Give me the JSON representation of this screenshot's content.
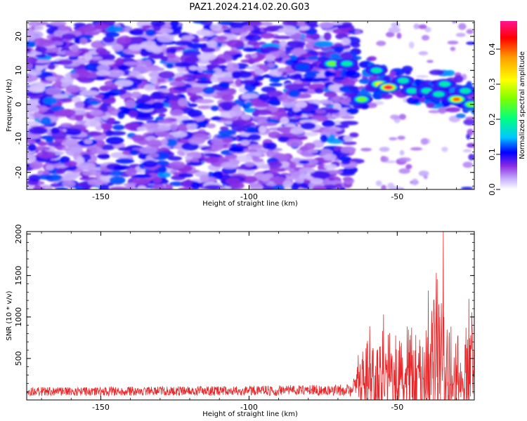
{
  "figure_title": "PAZ1.2024.214.02.20.G03",
  "chart_data": [
    {
      "type": "heatmap",
      "title": "",
      "xlabel": "Height of straight line (km)",
      "ylabel": "Frequency (Hz)",
      "xlim": [
        -175,
        -24
      ],
      "ylim": [
        -25,
        24.5
      ],
      "xticks": [
        "-150",
        "-100",
        "-50"
      ],
      "yticks": [
        "20",
        "10",
        "0",
        "-10",
        "-20"
      ],
      "grid": false,
      "colorbar": {
        "label": "Normalized spectral amplitude",
        "range": [
          0,
          0.48
        ],
        "ticks": [
          "0.0",
          "0.1",
          "0.2",
          "0.3",
          "0.4"
        ],
        "colors": [
          "#ffffff",
          "#c9b3ff",
          "#8a2be2",
          "#0000ff",
          "#00c8ff",
          "#00ff80",
          "#80ff00",
          "#ffff00",
          "#ffa000",
          "#ff0000",
          "#ff1493"
        ]
      },
      "feature": {
        "description_free": true,
        "dense_region_x": [
          -175,
          -64
        ],
        "dense_region_y": [
          -25,
          24.5
        ],
        "ridge": [
          {
            "x": -82,
            "y": 11,
            "v": 0.15
          },
          {
            "x": -72,
            "y": 12,
            "v": 0.25
          },
          {
            "x": -67,
            "y": 12,
            "v": 0.2
          },
          {
            "x": -62,
            "y": 1.5,
            "v": 0.3
          },
          {
            "x": -57,
            "y": 10,
            "v": 0.22
          },
          {
            "x": -56,
            "y": 6,
            "v": 0.35
          },
          {
            "x": -53,
            "y": 5,
            "v": 0.48
          },
          {
            "x": -48,
            "y": 7,
            "v": 0.18
          },
          {
            "x": -45,
            "y": 4,
            "v": 0.2
          },
          {
            "x": -40,
            "y": 4,
            "v": 0.2
          },
          {
            "x": -36,
            "y": 3,
            "v": 0.22
          },
          {
            "x": -34,
            "y": 6,
            "v": 0.2
          },
          {
            "x": -30,
            "y": 1.5,
            "v": 0.4
          },
          {
            "x": -27,
            "y": 4,
            "v": 0.22
          },
          {
            "x": -25,
            "y": 0,
            "v": 0.3
          }
        ]
      }
    },
    {
      "type": "line",
      "title": "",
      "xlabel": "Height of straight line (km)",
      "ylabel": "SNR (10 * v/v)",
      "xlim": [
        -175,
        -24
      ],
      "ylim": [
        0,
        2030
      ],
      "xticks": [
        "-150",
        "-100",
        "-50"
      ],
      "yticks": [
        "500",
        "1000",
        "1500",
        "2000"
      ],
      "grid": false,
      "series": [
        {
          "color": "#e8282a",
          "envelope": [
            {
              "x": -175,
              "base": 100,
              "amp": 80
            },
            {
              "x": -100,
              "base": 110,
              "amp": 90
            },
            {
              "x": -66,
              "base": 120,
              "amp": 110
            },
            {
              "x": -63,
              "base": 250,
              "amp": 500
            },
            {
              "x": -57,
              "base": 300,
              "amp": 900
            },
            {
              "x": -52,
              "base": 250,
              "amp": 700
            },
            {
              "x": -47,
              "base": 250,
              "amp": 750
            },
            {
              "x": -43,
              "base": 300,
              "amp": 900
            },
            {
              "x": -40,
              "base": 350,
              "amp": 1100
            },
            {
              "x": -36,
              "base": 400,
              "amp": 1500
            },
            {
              "x": -33,
              "base": 350,
              "amp": 1200
            },
            {
              "x": -30,
              "base": 300,
              "amp": 900
            },
            {
              "x": -28,
              "base": 100,
              "amp": 250
            },
            {
              "x": -26.5,
              "base": 400,
              "amp": 1100
            },
            {
              "x": -24,
              "base": 500,
              "amp": 900
            }
          ],
          "peak": {
            "x": -34.5,
            "y": 2030
          }
        }
      ]
    }
  ]
}
